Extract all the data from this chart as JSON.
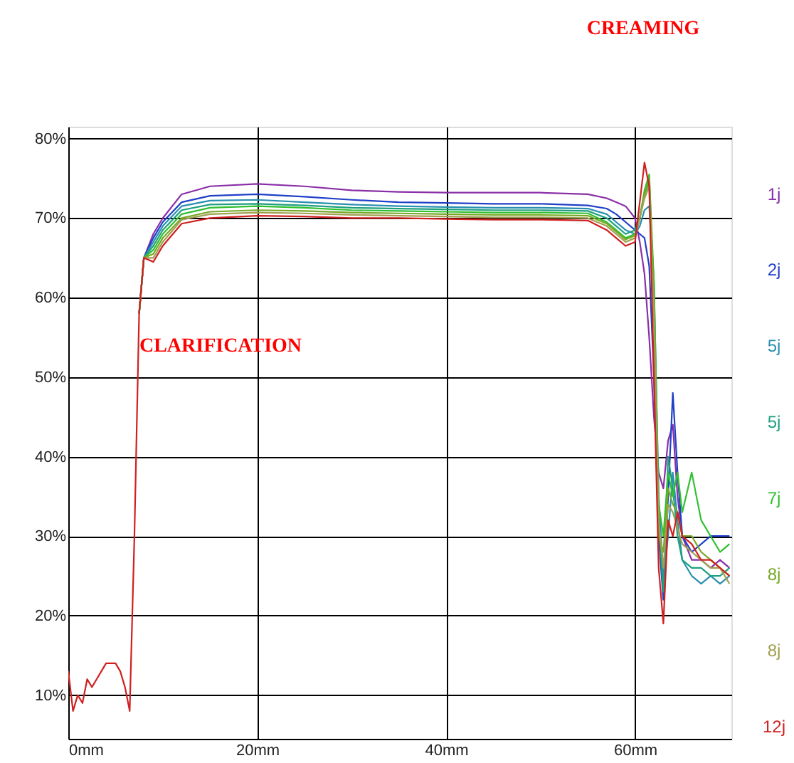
{
  "chart_data": {
    "type": "line",
    "x": [
      0,
      0.5,
      1,
      1.5,
      2,
      2.5,
      3,
      3.5,
      4,
      4.5,
      5,
      5.5,
      6,
      6.5,
      7,
      7.5,
      8,
      9,
      10,
      12,
      15,
      20,
      25,
      30,
      35,
      40,
      45,
      50,
      55,
      57,
      58,
      59,
      60,
      60.5,
      61,
      61.5,
      62,
      62.5,
      63,
      63.5,
      64,
      64.5,
      65,
      66,
      67,
      68,
      69,
      70
    ],
    "series": [
      {
        "name": "1j",
        "color": "#8a2fa8",
        "values": [
          null,
          null,
          null,
          null,
          null,
          null,
          null,
          null,
          null,
          null,
          null,
          null,
          null,
          null,
          null,
          58,
          65,
          68,
          70,
          73,
          74,
          74.3,
          74,
          73.5,
          73.3,
          73.2,
          73.2,
          73.2,
          73,
          72.5,
          72,
          71.5,
          70,
          67,
          63,
          55,
          45,
          38,
          36,
          42,
          44,
          35,
          30,
          27,
          27,
          26,
          27,
          26
        ]
      },
      {
        "name": "2j",
        "color": "#2040c8",
        "values": [
          null,
          null,
          null,
          null,
          null,
          null,
          null,
          null,
          null,
          null,
          null,
          null,
          null,
          null,
          null,
          58,
          65,
          67.5,
          69.5,
          72,
          72.8,
          73,
          72.7,
          72.3,
          72,
          71.9,
          71.8,
          71.8,
          71.6,
          71.2,
          70.5,
          69.5,
          68.5,
          68,
          67.5,
          64,
          50,
          30,
          22,
          35,
          48,
          38,
          30,
          28,
          29,
          30,
          30,
          30
        ]
      },
      {
        "name": "5j",
        "color": "#2a8fb0",
        "values": [
          null,
          null,
          null,
          null,
          null,
          null,
          null,
          null,
          null,
          null,
          null,
          null,
          null,
          null,
          null,
          58,
          65,
          67,
          69,
          71.5,
          72.2,
          72.3,
          72,
          71.7,
          71.5,
          71.4,
          71.3,
          71.3,
          71.2,
          70.5,
          69.5,
          68.5,
          68,
          69,
          71,
          71.5,
          62,
          35,
          25,
          30,
          38,
          32,
          27,
          25,
          24,
          25,
          24,
          25
        ]
      },
      {
        "name": "5j",
        "color": "#20a080",
        "values": [
          null,
          null,
          null,
          null,
          null,
          null,
          null,
          null,
          null,
          null,
          null,
          null,
          null,
          null,
          null,
          58,
          65,
          66.5,
          68.5,
          71,
          71.7,
          71.8,
          71.6,
          71.3,
          71.2,
          71.1,
          71,
          71,
          70.9,
          70,
          69,
          68,
          68.5,
          70,
          73,
          74.5,
          60,
          32,
          23,
          40,
          36,
          30,
          27,
          26,
          26,
          25,
          25,
          26
        ]
      },
      {
        "name": "7j",
        "color": "#30c030",
        "values": [
          null,
          null,
          null,
          null,
          null,
          null,
          null,
          null,
          null,
          null,
          null,
          null,
          null,
          null,
          null,
          58,
          65,
          66,
          68,
          70.5,
          71.3,
          71.5,
          71.3,
          71,
          70.9,
          70.8,
          70.7,
          70.7,
          70.6,
          69.5,
          68.5,
          67.5,
          68,
          70,
          73.5,
          75.5,
          62,
          34,
          30,
          38,
          35,
          38,
          33,
          38,
          32,
          30,
          28,
          29
        ]
      },
      {
        "name": "8j",
        "color": "#78a828",
        "values": [
          null,
          null,
          null,
          null,
          null,
          null,
          null,
          null,
          null,
          null,
          null,
          null,
          null,
          null,
          null,
          58,
          65,
          65.5,
          67.5,
          70,
          70.8,
          71,
          70.9,
          70.7,
          70.6,
          70.5,
          70.4,
          70.4,
          70.3,
          69.3,
          68.3,
          67.3,
          67.8,
          70,
          73,
          75,
          60,
          30,
          28,
          36,
          34,
          33,
          30,
          30,
          28,
          27,
          26,
          25
        ]
      },
      {
        "name": "8j",
        "color": "#a0a050",
        "values": [
          null,
          null,
          null,
          null,
          null,
          null,
          null,
          null,
          null,
          null,
          null,
          null,
          null,
          null,
          null,
          58,
          65,
          65,
          67,
          69.8,
          70.5,
          70.7,
          70.6,
          70.4,
          70.3,
          70.2,
          70.1,
          70.1,
          70,
          69,
          68,
          67,
          67.5,
          70,
          72.5,
          74,
          58,
          32,
          26,
          34,
          33,
          31,
          29,
          28,
          27,
          26,
          26,
          24
        ]
      },
      {
        "name": "12j",
        "color": "#d02020",
        "values": [
          13,
          8,
          10,
          9,
          12,
          11,
          12,
          13,
          14,
          14,
          14,
          13,
          11,
          8,
          30,
          58,
          65,
          64.5,
          66.5,
          69.3,
          70,
          70.3,
          70.2,
          70,
          70,
          69.9,
          69.8,
          69.8,
          69.7,
          68.5,
          67.5,
          66.5,
          67,
          72,
          77,
          74,
          50,
          26,
          19,
          32,
          30,
          33,
          30,
          29,
          27,
          27,
          26,
          25
        ]
      }
    ],
    "xlim": [
      0,
      70.2
    ],
    "xticks": [
      {
        "value": 0,
        "label": "0mm"
      },
      {
        "value": 20,
        "label": "20mm"
      },
      {
        "value": 40,
        "label": "40mm"
      },
      {
        "value": 60,
        "label": "60mm"
      }
    ],
    "ylim": [
      4.5,
      81.5
    ],
    "yticks": [
      {
        "value": 10,
        "label": "10%"
      },
      {
        "value": 20,
        "label": "20%"
      },
      {
        "value": 30,
        "label": "30%"
      },
      {
        "value": 40,
        "label": "40%"
      },
      {
        "value": 50,
        "label": "50%"
      },
      {
        "value": 60,
        "label": "60%"
      },
      {
        "value": 70,
        "label": "70%"
      },
      {
        "value": 80,
        "label": "80%"
      }
    ],
    "grid": true,
    "legend": "right",
    "marker": "none",
    "line_style": "solid",
    "annotations": [
      "CLARIFICATION",
      "CREAMING"
    ]
  }
}
